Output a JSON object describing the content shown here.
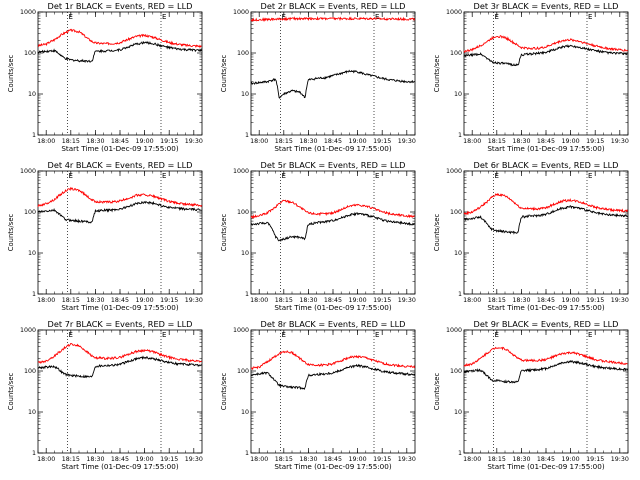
{
  "colors": {
    "events": "#000000",
    "lld": "#ff0000",
    "background": "#ffffff",
    "axes": "#000000"
  },
  "chart_data": [
    {
      "type": "line",
      "title": "Det 1r BLACK = Events, RED = LLD",
      "xlabel": "Start Time (01-Dec-09 17:55:00)",
      "ylabel": "Counts/sec",
      "xlim": [
        "17:55",
        "19:35"
      ],
      "ylim": [
        1,
        1000
      ],
      "yscale": "log",
      "x_ticks": [
        "18:00",
        "18:15",
        "18:30",
        "18:45",
        "19:00",
        "19:15",
        "19:30"
      ],
      "y_ticks": [
        "1",
        "10",
        "100",
        "1000"
      ],
      "markers": [
        {
          "time": "18:13",
          "label": "E"
        },
        {
          "time": "19:10",
          "label": "E"
        }
      ],
      "x": [
        "17:55",
        "18:00",
        "18:05",
        "18:10",
        "18:12",
        "18:15",
        "18:20",
        "18:25",
        "18:28",
        "18:30",
        "18:35",
        "18:40",
        "18:45",
        "18:50",
        "18:55",
        "19:00",
        "19:05",
        "19:10",
        "19:15",
        "19:20",
        "19:25",
        "19:30",
        "19:35"
      ],
      "series": [
        {
          "name": "RED = LLD",
          "values": [
            150,
            165,
            210,
            290,
            320,
            360,
            330,
            230,
            190,
            175,
            170,
            170,
            180,
            215,
            255,
            270,
            245,
            210,
            180,
            165,
            155,
            150,
            145
          ]
        },
        {
          "name": "BLACK = Events",
          "values": [
            105,
            110,
            115,
            80,
            72,
            68,
            65,
            64,
            63,
            110,
            112,
            115,
            120,
            140,
            165,
            180,
            170,
            150,
            135,
            125,
            120,
            118,
            115
          ]
        }
      ]
    },
    {
      "type": "line",
      "title": "Det 2r BLACK = Events, RED = LLD",
      "xlabel": "Start Time (01-Dec-09 17:55:00)",
      "ylabel": "Counts/sec",
      "xlim": [
        "17:55",
        "19:35"
      ],
      "ylim": [
        1,
        1000
      ],
      "yscale": "log",
      "x_ticks": [
        "18:00",
        "18:15",
        "18:30",
        "18:45",
        "19:00",
        "19:15",
        "19:30"
      ],
      "y_ticks": [
        "1",
        "10",
        "100",
        "1000"
      ],
      "markers": [
        {
          "time": "18:13",
          "label": "E"
        },
        {
          "time": "19:10",
          "label": "E"
        }
      ],
      "x": [
        "17:55",
        "18:00",
        "18:05",
        "18:10",
        "18:12",
        "18:15",
        "18:20",
        "18:25",
        "18:28",
        "18:30",
        "18:35",
        "18:40",
        "18:45",
        "18:50",
        "18:55",
        "19:00",
        "19:05",
        "19:10",
        "19:15",
        "19:20",
        "19:25",
        "19:30",
        "19:35"
      ],
      "series": [
        {
          "name": "RED = LLD",
          "values": [
            640,
            650,
            660,
            670,
            670,
            680,
            690,
            690,
            690,
            690,
            690,
            690,
            690,
            690,
            690,
            690,
            690,
            690,
            680,
            680,
            675,
            670,
            670
          ]
        },
        {
          "name": "BLACK = Events",
          "values": [
            18,
            19,
            20,
            23,
            8,
            10,
            12,
            11,
            8,
            22,
            24,
            25,
            28,
            32,
            36,
            35,
            30,
            27,
            24,
            22,
            21,
            20,
            20
          ]
        }
      ]
    },
    {
      "type": "line",
      "title": "Det 3r BLACK = Events, RED = LLD",
      "xlabel": "Start Time (01-Dec-09 17:55:00)",
      "ylabel": "Counts/sec",
      "xlim": [
        "17:55",
        "19:35"
      ],
      "ylim": [
        1,
        1000
      ],
      "yscale": "log",
      "x_ticks": [
        "18:00",
        "18:15",
        "18:30",
        "18:45",
        "19:00",
        "19:15",
        "19:30"
      ],
      "y_ticks": [
        "1",
        "10",
        "100",
        "1000"
      ],
      "markers": [
        {
          "time": "18:13",
          "label": "E"
        },
        {
          "time": "19:10",
          "label": "E"
        }
      ],
      "x": [
        "17:55",
        "18:00",
        "18:05",
        "18:10",
        "18:12",
        "18:15",
        "18:20",
        "18:25",
        "18:28",
        "18:30",
        "18:35",
        "18:40",
        "18:45",
        "18:50",
        "18:55",
        "19:00",
        "19:05",
        "19:10",
        "19:15",
        "19:20",
        "19:25",
        "19:30",
        "19:35"
      ],
      "series": [
        {
          "name": "RED = LLD",
          "values": [
            110,
            120,
            150,
            200,
            230,
            260,
            240,
            180,
            150,
            135,
            130,
            130,
            140,
            170,
            200,
            210,
            195,
            170,
            150,
            135,
            125,
            120,
            115
          ]
        },
        {
          "name": "BLACK = Events",
          "values": [
            85,
            90,
            95,
            70,
            60,
            58,
            55,
            52,
            50,
            90,
            95,
            98,
            105,
            120,
            140,
            150,
            140,
            125,
            115,
            105,
            100,
            98,
            95
          ]
        }
      ]
    },
    {
      "type": "line",
      "title": "Det 4r BLACK = Events, RED = LLD",
      "xlabel": "Start Time (01-Dec-09 17:55:00)",
      "ylabel": "Counts/sec",
      "xlim": [
        "17:55",
        "19:35"
      ],
      "ylim": [
        1,
        1000
      ],
      "yscale": "log",
      "x_ticks": [
        "18:00",
        "18:15",
        "18:30",
        "18:45",
        "19:00",
        "19:15",
        "19:30"
      ],
      "y_ticks": [
        "1",
        "10",
        "100",
        "1000"
      ],
      "markers": [
        {
          "time": "18:13",
          "label": "E"
        },
        {
          "time": "19:10",
          "label": "E"
        }
      ],
      "x": [
        "17:55",
        "18:00",
        "18:05",
        "18:10",
        "18:12",
        "18:15",
        "18:20",
        "18:25",
        "18:28",
        "18:30",
        "18:35",
        "18:40",
        "18:45",
        "18:50",
        "18:55",
        "19:00",
        "19:05",
        "19:10",
        "19:15",
        "19:20",
        "19:25",
        "19:30",
        "19:35"
      ],
      "series": [
        {
          "name": "RED = LLD",
          "values": [
            140,
            160,
            200,
            290,
            330,
            370,
            340,
            240,
            195,
            180,
            175,
            175,
            185,
            215,
            255,
            265,
            245,
            210,
            180,
            165,
            155,
            150,
            145
          ]
        },
        {
          "name": "BLACK = Events",
          "values": [
            100,
            105,
            110,
            75,
            65,
            63,
            60,
            58,
            57,
            105,
            110,
            112,
            118,
            135,
            160,
            175,
            165,
            145,
            130,
            122,
            118,
            115,
            112
          ]
        }
      ]
    },
    {
      "type": "line",
      "title": "Det 5r BLACK = Events, RED = LLD",
      "xlabel": "Start Time (01-Dec-09 17:55:00)",
      "ylabel": "Counts/sec",
      "xlim": [
        "17:55",
        "19:35"
      ],
      "ylim": [
        1,
        1000
      ],
      "yscale": "log",
      "x_ticks": [
        "18:00",
        "18:15",
        "18:30",
        "18:45",
        "19:00",
        "19:15",
        "19:30"
      ],
      "y_ticks": [
        "1",
        "10",
        "100",
        "1000"
      ],
      "markers": [
        {
          "time": "18:13",
          "label": "E"
        },
        {
          "time": "19:10",
          "label": "E"
        }
      ],
      "x": [
        "17:55",
        "18:00",
        "18:05",
        "18:10",
        "18:12",
        "18:15",
        "18:20",
        "18:25",
        "18:28",
        "18:30",
        "18:35",
        "18:40",
        "18:45",
        "18:50",
        "18:55",
        "19:00",
        "19:05",
        "19:10",
        "19:15",
        "19:20",
        "19:25",
        "19:30",
        "19:35"
      ],
      "series": [
        {
          "name": "RED = LLD",
          "values": [
            75,
            80,
            95,
            130,
            160,
            190,
            175,
            130,
            105,
            95,
            90,
            90,
            95,
            115,
            140,
            150,
            140,
            120,
            100,
            90,
            85,
            80,
            78
          ]
        },
        {
          "name": "BLACK = Events",
          "values": [
            50,
            52,
            55,
            25,
            20,
            22,
            25,
            24,
            22,
            50,
            55,
            58,
            62,
            72,
            85,
            92,
            85,
            75,
            65,
            58,
            55,
            52,
            50
          ]
        }
      ]
    },
    {
      "type": "line",
      "title": "Det 6r BLACK = Events, RED = LLD",
      "xlabel": "Start Time (01-Dec-09 17:55:00)",
      "ylabel": "Counts/sec",
      "xlim": [
        "17:55",
        "19:35"
      ],
      "ylim": [
        1,
        1000
      ],
      "yscale": "log",
      "x_ticks": [
        "18:00",
        "18:15",
        "18:30",
        "18:45",
        "19:00",
        "19:15",
        "19:30"
      ],
      "y_ticks": [
        "1",
        "10",
        "100",
        "1000"
      ],
      "markers": [
        {
          "time": "18:13",
          "label": "E"
        },
        {
          "time": "19:10",
          "label": "E"
        }
      ],
      "x": [
        "17:55",
        "18:00",
        "18:05",
        "18:10",
        "18:12",
        "18:15",
        "18:20",
        "18:25",
        "18:28",
        "18:30",
        "18:35",
        "18:40",
        "18:45",
        "18:50",
        "18:55",
        "19:00",
        "19:05",
        "19:10",
        "19:15",
        "19:20",
        "19:25",
        "19:30",
        "19:35"
      ],
      "series": [
        {
          "name": "RED = LLD",
          "values": [
            90,
            100,
            130,
            190,
            230,
            270,
            250,
            180,
            140,
            125,
            120,
            120,
            125,
            155,
            185,
            195,
            180,
            155,
            130,
            120,
            112,
            108,
            105
          ]
        },
        {
          "name": "BLACK = Events",
          "values": [
            65,
            70,
            75,
            45,
            38,
            35,
            33,
            32,
            31,
            75,
            80,
            82,
            88,
            105,
            125,
            135,
            125,
            110,
            95,
            88,
            84,
            82,
            80
          ]
        }
      ]
    },
    {
      "type": "line",
      "title": "Det 7r BLACK = Events, RED = LLD",
      "xlabel": "Start Time (01-Dec-09 17:55:00)",
      "ylabel": "Counts/sec",
      "xlim": [
        "17:55",
        "19:35"
      ],
      "ylim": [
        1,
        1000
      ],
      "yscale": "log",
      "x_ticks": [
        "18:00",
        "18:15",
        "18:30",
        "18:45",
        "19:00",
        "19:15",
        "19:30"
      ],
      "y_ticks": [
        "1",
        "10",
        "100",
        "1000"
      ],
      "markers": [
        {
          "time": "18:13",
          "label": "E"
        },
        {
          "time": "19:10",
          "label": "E"
        }
      ],
      "x": [
        "17:55",
        "18:00",
        "18:05",
        "18:10",
        "18:12",
        "18:15",
        "18:20",
        "18:25",
        "18:28",
        "18:30",
        "18:35",
        "18:40",
        "18:45",
        "18:50",
        "18:55",
        "19:00",
        "19:05",
        "19:10",
        "19:15",
        "19:20",
        "19:25",
        "19:30",
        "19:35"
      ],
      "series": [
        {
          "name": "RED = LLD",
          "values": [
            160,
            175,
            230,
            330,
            390,
            450,
            410,
            290,
            230,
            210,
            205,
            205,
            215,
            255,
            300,
            320,
            295,
            250,
            215,
            195,
            185,
            178,
            172
          ]
        },
        {
          "name": "BLACK = Events",
          "values": [
            120,
            125,
            130,
            90,
            82,
            78,
            75,
            73,
            72,
            130,
            135,
            138,
            145,
            170,
            200,
            215,
            200,
            180,
            160,
            150,
            145,
            140,
            138
          ]
        }
      ]
    },
    {
      "type": "line",
      "title": "Det 8r BLACK = Events, RED = LLD",
      "xlabel": "Start Time (01-Dec-09 17:55:00)",
      "ylabel": "Counts/sec",
      "xlim": [
        "17:55",
        "19:35"
      ],
      "ylim": [
        1,
        1000
      ],
      "yscale": "log",
      "x_ticks": [
        "18:00",
        "18:15",
        "18:30",
        "18:45",
        "19:00",
        "19:15",
        "19:30"
      ],
      "y_ticks": [
        "1",
        "10",
        "100",
        "1000"
      ],
      "markers": [
        {
          "time": "18:13",
          "label": "E"
        },
        {
          "time": "19:10",
          "label": "E"
        }
      ],
      "x": [
        "17:55",
        "18:00",
        "18:05",
        "18:10",
        "18:12",
        "18:15",
        "18:20",
        "18:25",
        "18:28",
        "18:30",
        "18:35",
        "18:40",
        "18:45",
        "18:50",
        "18:55",
        "19:00",
        "19:05",
        "19:10",
        "19:15",
        "19:20",
        "19:25",
        "19:30",
        "19:35"
      ],
      "series": [
        {
          "name": "RED = LLD",
          "values": [
            115,
            125,
            165,
            230,
            265,
            300,
            280,
            200,
            160,
            145,
            140,
            140,
            150,
            180,
            215,
            225,
            210,
            180,
            155,
            142,
            135,
            130,
            125
          ]
        },
        {
          "name": "BLACK = Events",
          "values": [
            80,
            85,
            90,
            55,
            45,
            42,
            40,
            39,
            38,
            78,
            82,
            85,
            90,
            105,
            125,
            135,
            125,
            112,
            100,
            92,
            88,
            85,
            82
          ]
        }
      ]
    },
    {
      "type": "line",
      "title": "Det 9r BLACK = Events, RED = LLD",
      "xlabel": "Start Time (01-Dec-09 17:55:00)",
      "ylabel": "Counts/sec",
      "xlim": [
        "17:55",
        "19:35"
      ],
      "ylim": [
        1,
        1000
      ],
      "yscale": "log",
      "x_ticks": [
        "18:00",
        "18:15",
        "18:30",
        "18:45",
        "19:00",
        "19:15",
        "19:30"
      ],
      "y_ticks": [
        "1",
        "10",
        "100",
        "1000"
      ],
      "markers": [
        {
          "time": "18:13",
          "label": "E"
        },
        {
          "time": "19:10",
          "label": "E"
        }
      ],
      "x": [
        "17:55",
        "18:00",
        "18:05",
        "18:10",
        "18:12",
        "18:15",
        "18:20",
        "18:25",
        "18:28",
        "18:30",
        "18:35",
        "18:40",
        "18:45",
        "18:50",
        "18:55",
        "19:00",
        "19:05",
        "19:10",
        "19:15",
        "19:20",
        "19:25",
        "19:30",
        "19:35"
      ],
      "series": [
        {
          "name": "RED = LLD",
          "values": [
            135,
            150,
            200,
            290,
            330,
            380,
            350,
            250,
            200,
            185,
            180,
            180,
            190,
            225,
            265,
            280,
            260,
            220,
            190,
            175,
            165,
            158,
            152
          ]
        },
        {
          "name": "BLACK = Events",
          "values": [
            95,
            100,
            105,
            70,
            60,
            58,
            55,
            54,
            53,
            100,
            105,
            108,
            115,
            135,
            160,
            170,
            160,
            145,
            128,
            120,
            115,
            112,
            110
          ]
        }
      ]
    }
  ]
}
